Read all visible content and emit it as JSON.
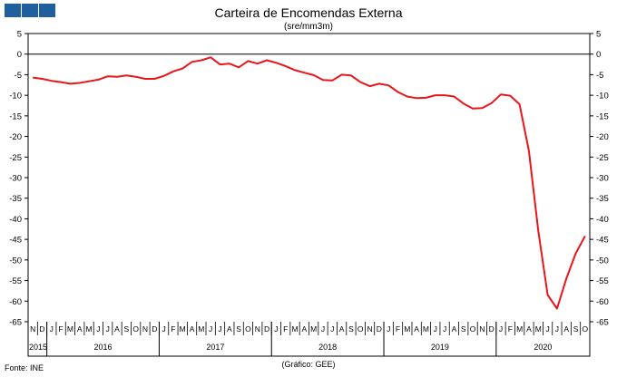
{
  "header": {
    "logo_icon": "ine-logo-squares",
    "brand_color": "#1f5f9e"
  },
  "chart_data": {
    "type": "line",
    "title": "Carteira de Encomendas Externa",
    "subtitle": "(sre/mm3m)",
    "source": "Fonte: INE",
    "credit": "(Gráfico: GEE)",
    "ylim": [
      -65,
      5
    ],
    "yticks": [
      5,
      0,
      -5,
      -10,
      -15,
      -20,
      -25,
      -30,
      -35,
      -40,
      -45,
      -50,
      -55,
      -60,
      -65
    ],
    "ytick_labels": [
      "5",
      "0",
      "-5",
      "-10",
      "-15",
      "-20",
      "-25",
      "-30",
      "-35",
      "-40",
      "-45",
      "-50",
      "-55",
      "-60",
      "-65"
    ],
    "grid": false,
    "line_color": "#e8161b",
    "month_labels": [
      "N",
      "D",
      "J",
      "F",
      "M",
      "A",
      "M",
      "J",
      "J",
      "A",
      "S",
      "O",
      "N",
      "D",
      "J",
      "F",
      "M",
      "A",
      "M",
      "J",
      "J",
      "A",
      "S",
      "O",
      "N",
      "D",
      "J",
      "F",
      "M",
      "A",
      "M",
      "J",
      "J",
      "A",
      "S",
      "O",
      "N",
      "D",
      "J",
      "F",
      "M",
      "A",
      "M",
      "J",
      "J",
      "A",
      "S",
      "O",
      "N",
      "D",
      "J",
      "F",
      "M",
      "A",
      "M",
      "J",
      "J",
      "A",
      "S",
      "O"
    ],
    "years": [
      {
        "label": "2015",
        "first_index": 0,
        "last_index": 1
      },
      {
        "label": "2016",
        "first_index": 2,
        "last_index": 13
      },
      {
        "label": "2017",
        "first_index": 14,
        "last_index": 25
      },
      {
        "label": "2018",
        "first_index": 26,
        "last_index": 37
      },
      {
        "label": "2019",
        "first_index": 38,
        "last_index": 49
      },
      {
        "label": "2020",
        "first_index": 50,
        "last_index": 59
      }
    ],
    "series": [
      {
        "values": [
          -5.7,
          -6.0,
          -6.5,
          -6.8,
          -7.2,
          -7.0,
          -6.6,
          -6.2,
          -5.4,
          -5.5,
          -5.2,
          -5.5,
          -6.0,
          -6.0,
          -5.3,
          -4.2,
          -3.5,
          -1.9,
          -1.5,
          -0.8,
          -2.5,
          -2.3,
          -3.2,
          -1.7,
          -2.3,
          -1.5,
          -2.1,
          -2.9,
          -3.9,
          -4.5,
          -5.1,
          -6.3,
          -6.4,
          -5.0,
          -5.2,
          -6.8,
          -7.8,
          -7.2,
          -7.6,
          -9.2,
          -10.3,
          -10.7,
          -10.6,
          -10.0,
          -10.0,
          -10.3,
          -12.0,
          -13.2,
          -13.1,
          -11.9,
          -9.8,
          -10.1,
          -12.2,
          -23.5,
          -43.0,
          -58.5,
          -61.8,
          -54.5,
          -48.4,
          -44.2
        ]
      }
    ]
  }
}
